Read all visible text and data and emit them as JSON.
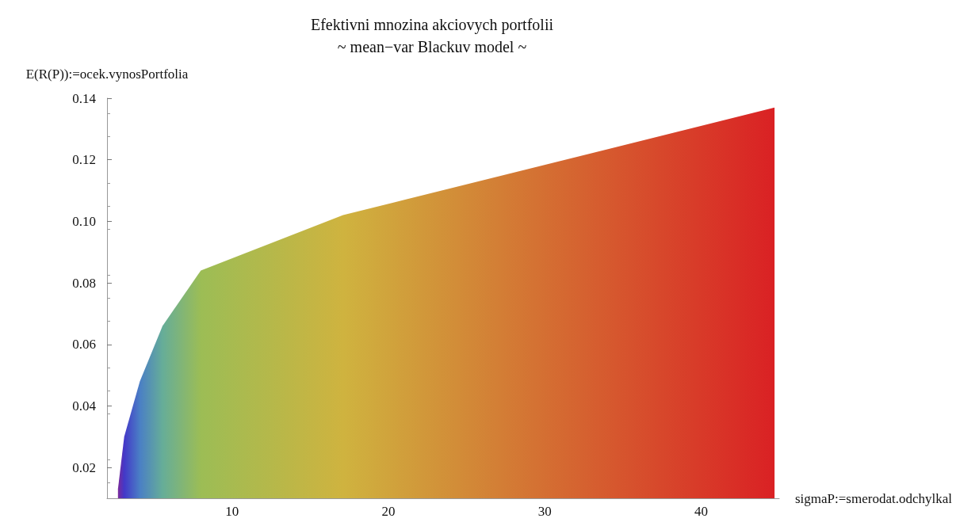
{
  "chart_data": {
    "type": "area",
    "title": "Efektivni mnozina akciovych portfolii",
    "subtitle": "~ mean−var Blackuv model ~",
    "xlabel": "sigmaP:=smerodat.odchylkal",
    "ylabel": "E(R(P)):=ocek.vynosPortfolia",
    "series": [
      {
        "x": [
          2.7,
          3.1,
          4.1,
          5.55,
          8.0,
          17.1,
          44.7
        ],
        "values": [
          0.013,
          0.03,
          0.048,
          0.066,
          0.084,
          0.102,
          0.137
        ],
        "colors": [
          "#7b2a9b",
          "#4338c8",
          "#4a7fc5",
          "#66ad98",
          "#9cbd55",
          "#cfb33f",
          "#da2124"
        ]
      }
    ],
    "xlim": [
      2,
      45
    ],
    "xticks": [
      10,
      20,
      30,
      40
    ],
    "ylim": [
      0.01,
      0.14
    ],
    "yticks": [
      0.02,
      0.04,
      0.06,
      0.08,
      {
        "value": 0.1,
        "label": "0.10"
      },
      0.12,
      0.14
    ],
    "grid": false,
    "marker": "none"
  }
}
